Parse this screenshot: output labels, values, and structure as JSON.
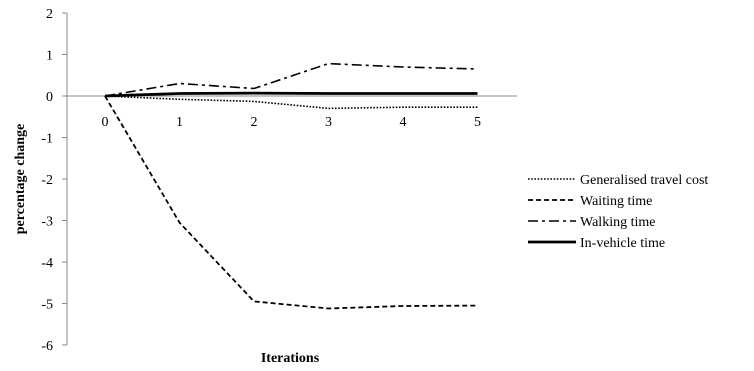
{
  "chart_data": {
    "type": "line",
    "title": "",
    "xlabel": "Iterations",
    "ylabel": "percentage change",
    "x": [
      0,
      1,
      2,
      3,
      4,
      5
    ],
    "x_ticks": [
      "0",
      "1",
      "2",
      "3",
      "4",
      "5"
    ],
    "y_ticks": [
      "2",
      "1",
      "0",
      "-1",
      "-2",
      "-3",
      "-4",
      "-5",
      "-6"
    ],
    "ylim": [
      -6,
      2
    ],
    "grid": false,
    "legend_position": "right",
    "series": [
      {
        "name": "Generalised travel cost",
        "style": "dotted",
        "color": "#000000",
        "values": [
          0,
          -0.08,
          -0.13,
          -0.3,
          -0.27,
          -0.27
        ]
      },
      {
        "name": "Waiting time",
        "style": "dashed",
        "color": "#000000",
        "values": [
          0,
          -3.05,
          -4.95,
          -5.12,
          -5.06,
          -5.05
        ]
      },
      {
        "name": "Walking time",
        "style": "dashdot",
        "color": "#000000",
        "values": [
          0,
          0.3,
          0.18,
          0.78,
          0.7,
          0.65
        ]
      },
      {
        "name": "In-vehicle time",
        "style": "solid",
        "color": "#000000",
        "values": [
          0,
          0.06,
          0.07,
          0.06,
          0.06,
          0.06
        ]
      }
    ]
  }
}
